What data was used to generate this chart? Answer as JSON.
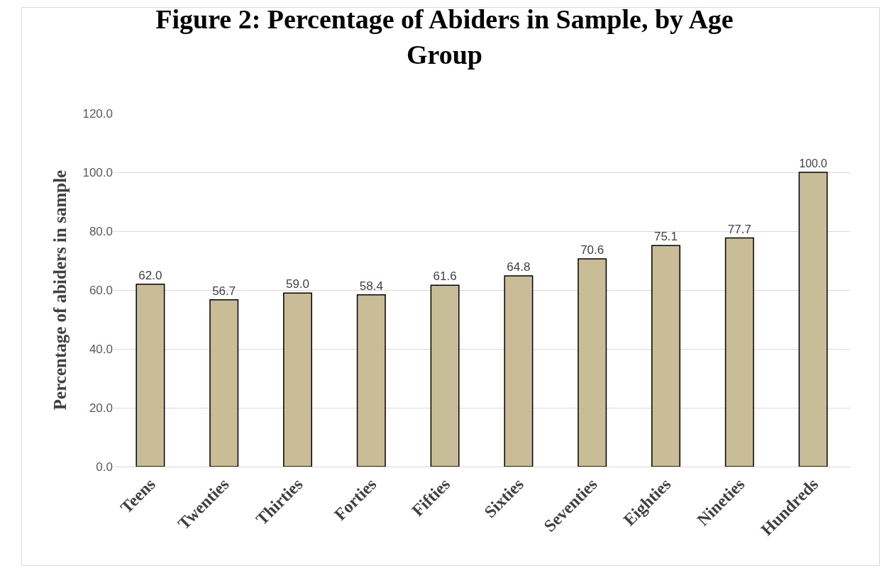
{
  "chart_data": {
    "type": "bar",
    "title": "Figure 2: Percentage of Abiders in Sample, by Age Group",
    "ylabel": "Percentage of abiders in sample",
    "categories": [
      "Teens",
      "Twenties",
      "Thirties",
      "Forties",
      "Fifties",
      "Sixties",
      "Seventies",
      "Eighties",
      "Nineties",
      "Hundreds"
    ],
    "values": [
      62.0,
      56.7,
      59.0,
      58.4,
      61.6,
      64.8,
      70.6,
      75.1,
      77.7,
      100.0
    ],
    "value_labels": [
      "62.0",
      "56.7",
      "59.0",
      "58.4",
      "61.6",
      "64.8",
      "70.6",
      "75.1",
      "77.7",
      "100.0"
    ],
    "color": "#c8bd96",
    "ylim": [
      0,
      120
    ],
    "yticks": [
      {
        "value": 0,
        "label": "0.0"
      },
      {
        "value": 20,
        "label": "20.0"
      },
      {
        "value": 40,
        "label": "40.0"
      },
      {
        "value": 60,
        "label": "60.0"
      },
      {
        "value": 80,
        "label": "80.0"
      },
      {
        "value": 100,
        "label": "100.0"
      },
      {
        "value": 120,
        "label": "120.0"
      }
    ],
    "grid": "y",
    "legend": false
  }
}
